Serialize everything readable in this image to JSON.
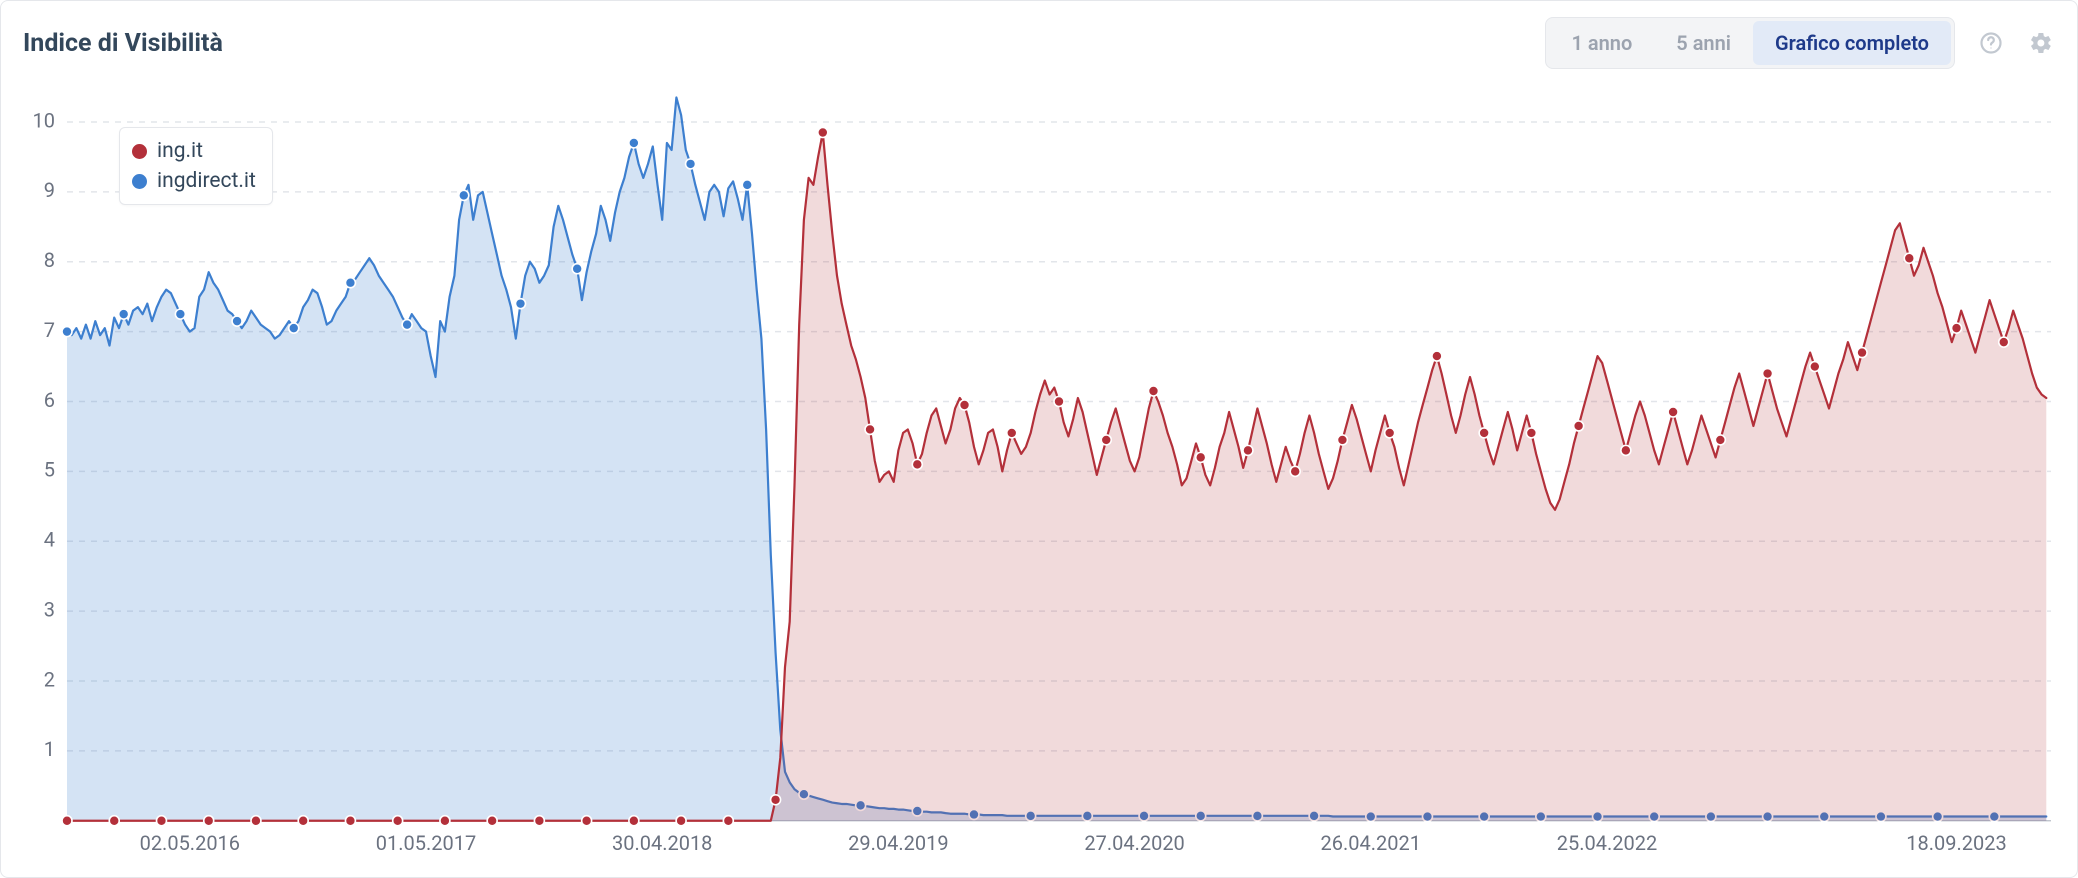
{
  "header": {
    "title": "Indice di Visibilità",
    "range_buttons": {
      "y1": "1 anno",
      "y5": "5 anni",
      "full": "Grafico completo",
      "active": "full"
    }
  },
  "legend": {
    "items": [
      {
        "label": "ing.it",
        "color": "#b3303a"
      },
      {
        "label": "ingdirect.it",
        "color": "#3d7fcf"
      }
    ]
  },
  "chart": {
    "background_color": "#ffffff",
    "grid_color": "#e2e5ea",
    "axis_color": "#b8bec7",
    "label_color": "#6b7280",
    "label_fontsize": 20,
    "ylim": [
      0,
      10.5
    ],
    "yticks": [
      1,
      2,
      3,
      4,
      5,
      6,
      7,
      8,
      9,
      10
    ],
    "x_index_range": [
      0,
      420
    ],
    "xticks": [
      {
        "i": 26,
        "label": "02.05.2016"
      },
      {
        "i": 76,
        "label": "01.05.2017"
      },
      {
        "i": 126,
        "label": "30.04.2018"
      },
      {
        "i": 176,
        "label": "29.04.2019"
      },
      {
        "i": 226,
        "label": "27.04.2020"
      },
      {
        "i": 276,
        "label": "26.04.2021"
      },
      {
        "i": 326,
        "label": "25.04.2022"
      },
      {
        "i": 400,
        "label": "18.09.2023"
      }
    ],
    "series": {
      "ingdirect": {
        "color": "#3d7fcf",
        "fill_color": "#3d7fcf",
        "fill_opacity": 0.22,
        "marker_radius": 5,
        "line_width": 2.2,
        "marker_every": 12,
        "data": [
          7.0,
          6.95,
          7.05,
          6.9,
          7.1,
          6.9,
          7.15,
          6.95,
          7.05,
          6.8,
          7.2,
          7.05,
          7.25,
          7.1,
          7.3,
          7.35,
          7.25,
          7.4,
          7.15,
          7.35,
          7.5,
          7.6,
          7.55,
          7.4,
          7.25,
          7.1,
          7.0,
          7.05,
          7.5,
          7.6,
          7.85,
          7.7,
          7.6,
          7.45,
          7.3,
          7.25,
          7.15,
          7.05,
          7.15,
          7.3,
          7.2,
          7.1,
          7.05,
          7.0,
          6.9,
          6.95,
          7.05,
          7.15,
          7.05,
          7.15,
          7.35,
          7.45,
          7.6,
          7.55,
          7.35,
          7.1,
          7.15,
          7.3,
          7.4,
          7.5,
          7.7,
          7.75,
          7.85,
          7.95,
          8.05,
          7.95,
          7.8,
          7.7,
          7.6,
          7.5,
          7.35,
          7.2,
          7.1,
          7.25,
          7.15,
          7.05,
          7.0,
          6.65,
          6.35,
          7.15,
          7.0,
          7.5,
          7.8,
          8.6,
          8.95,
          9.1,
          8.6,
          8.95,
          9.0,
          8.7,
          8.4,
          8.1,
          7.8,
          7.6,
          7.35,
          6.9,
          7.4,
          7.8,
          8.0,
          7.9,
          7.7,
          7.8,
          7.95,
          8.5,
          8.8,
          8.6,
          8.35,
          8.1,
          7.9,
          7.45,
          7.85,
          8.15,
          8.4,
          8.8,
          8.6,
          8.3,
          8.7,
          9.0,
          9.2,
          9.5,
          9.7,
          9.4,
          9.2,
          9.4,
          9.65,
          9.1,
          8.6,
          9.7,
          9.6,
          10.35,
          10.1,
          9.6,
          9.4,
          9.1,
          8.85,
          8.6,
          9.0,
          9.1,
          9.0,
          8.65,
          9.05,
          9.15,
          8.9,
          8.6,
          9.1,
          8.4,
          7.6,
          6.9,
          5.6,
          3.8,
          2.4,
          1.3,
          0.7,
          0.55,
          0.45,
          0.4,
          0.38,
          0.36,
          0.34,
          0.32,
          0.3,
          0.28,
          0.26,
          0.25,
          0.24,
          0.24,
          0.23,
          0.22,
          0.22,
          0.21,
          0.2,
          0.19,
          0.18,
          0.18,
          0.17,
          0.17,
          0.16,
          0.16,
          0.15,
          0.14,
          0.14,
          0.13,
          0.13,
          0.12,
          0.12,
          0.12,
          0.11,
          0.1,
          0.1,
          0.1,
          0.1,
          0.09,
          0.09,
          0.09,
          0.08,
          0.08,
          0.08,
          0.08,
          0.08,
          0.07,
          0.07,
          0.07,
          0.07,
          0.07,
          0.07,
          0.07,
          0.07,
          0.07,
          0.07,
          0.07,
          0.07,
          0.07,
          0.07,
          0.07,
          0.07,
          0.07,
          0.07,
          0.07,
          0.07,
          0.07,
          0.07,
          0.07,
          0.07,
          0.07,
          0.07,
          0.07,
          0.07,
          0.07,
          0.07,
          0.07,
          0.07,
          0.07,
          0.07,
          0.07,
          0.07,
          0.07,
          0.07,
          0.07,
          0.07,
          0.07,
          0.07,
          0.07,
          0.07,
          0.07,
          0.07,
          0.07,
          0.07,
          0.07,
          0.07,
          0.07,
          0.07,
          0.07,
          0.07,
          0.07,
          0.07,
          0.07,
          0.07,
          0.07,
          0.07,
          0.07,
          0.07,
          0.07,
          0.07,
          0.07,
          0.07,
          0.07,
          0.07,
          0.07,
          0.06,
          0.06,
          0.06,
          0.06,
          0.06,
          0.06,
          0.06,
          0.06,
          0.06,
          0.06,
          0.06,
          0.06,
          0.06,
          0.06,
          0.06,
          0.06,
          0.06,
          0.06,
          0.06,
          0.06,
          0.06,
          0.06,
          0.06,
          0.06,
          0.06,
          0.06,
          0.06,
          0.06,
          0.06,
          0.06,
          0.06,
          0.06,
          0.06,
          0.06,
          0.06,
          0.06,
          0.06,
          0.06,
          0.06,
          0.06,
          0.06,
          0.06,
          0.06,
          0.06,
          0.06,
          0.06,
          0.06,
          0.06,
          0.06,
          0.06,
          0.06,
          0.06,
          0.06,
          0.06,
          0.06,
          0.06,
          0.06,
          0.06,
          0.06,
          0.06,
          0.06,
          0.06,
          0.06,
          0.06,
          0.06,
          0.06,
          0.06,
          0.06,
          0.06,
          0.06,
          0.06,
          0.06,
          0.06,
          0.06,
          0.06,
          0.06,
          0.06,
          0.06,
          0.06,
          0.06,
          0.06,
          0.06,
          0.06,
          0.06,
          0.06,
          0.06,
          0.06,
          0.06,
          0.06,
          0.06,
          0.06,
          0.06,
          0.06,
          0.06,
          0.06,
          0.06,
          0.06,
          0.06,
          0.06,
          0.06,
          0.06,
          0.06,
          0.06,
          0.06,
          0.06,
          0.06,
          0.06,
          0.06,
          0.06,
          0.06,
          0.06,
          0.06,
          0.06,
          0.06,
          0.06,
          0.06,
          0.06,
          0.06,
          0.06,
          0.06,
          0.06,
          0.06,
          0.06,
          0.06,
          0.06,
          0.06,
          0.06,
          0.06,
          0.06,
          0.06,
          0.06,
          0.06,
          0.06,
          0.06,
          0.06,
          0.06,
          0.06,
          0.06,
          0.06,
          0.06,
          0.06,
          0.06,
          0.06,
          0.06,
          0.06,
          0.06,
          0.06,
          0.06,
          0.06,
          0.06,
          0.06,
          0.06
        ]
      },
      "ing": {
        "color": "#b3303a",
        "fill_color": "#b3303a",
        "fill_opacity": 0.18,
        "marker_radius": 5,
        "line_width": 2.2,
        "marker_every": 10,
        "data": [
          0.0,
          0.0,
          0.0,
          0.0,
          0.0,
          0.0,
          0.0,
          0.0,
          0.0,
          0.0,
          0.0,
          0.0,
          0.0,
          0.0,
          0.0,
          0.0,
          0.0,
          0.0,
          0.0,
          0.0,
          0.0,
          0.0,
          0.0,
          0.0,
          0.0,
          0.0,
          0.0,
          0.0,
          0.0,
          0.0,
          0.0,
          0.0,
          0.0,
          0.0,
          0.0,
          0.0,
          0.0,
          0.0,
          0.0,
          0.0,
          0.0,
          0.0,
          0.0,
          0.0,
          0.0,
          0.0,
          0.0,
          0.0,
          0.0,
          0.0,
          0.0,
          0.0,
          0.0,
          0.0,
          0.0,
          0.0,
          0.0,
          0.0,
          0.0,
          0.0,
          0.0,
          0.0,
          0.0,
          0.0,
          0.0,
          0.0,
          0.0,
          0.0,
          0.0,
          0.0,
          0.0,
          0.0,
          0.0,
          0.0,
          0.0,
          0.0,
          0.0,
          0.0,
          0.0,
          0.0,
          0.0,
          0.0,
          0.0,
          0.0,
          0.0,
          0.0,
          0.0,
          0.0,
          0.0,
          0.0,
          0.0,
          0.0,
          0.0,
          0.0,
          0.0,
          0.0,
          0.0,
          0.0,
          0.0,
          0.0,
          0.0,
          0.0,
          0.0,
          0.0,
          0.0,
          0.0,
          0.0,
          0.0,
          0.0,
          0.0,
          0.0,
          0.0,
          0.0,
          0.0,
          0.0,
          0.0,
          0.0,
          0.0,
          0.0,
          0.0,
          0.0,
          0.0,
          0.0,
          0.0,
          0.0,
          0.0,
          0.0,
          0.0,
          0.0,
          0.0,
          0.0,
          0.0,
          0.0,
          0.0,
          0.0,
          0.0,
          0.0,
          0.0,
          0.0,
          0.0,
          0.0,
          0.0,
          0.0,
          0.0,
          0.0,
          0.0,
          0.0,
          0.0,
          0.0,
          0.0,
          0.3,
          0.9,
          2.2,
          2.85,
          4.8,
          7.1,
          8.6,
          9.2,
          9.1,
          9.5,
          9.85,
          9.1,
          8.4,
          7.8,
          7.4,
          7.1,
          6.8,
          6.6,
          6.35,
          6.05,
          5.6,
          5.15,
          4.85,
          4.95,
          5.0,
          4.85,
          5.3,
          5.55,
          5.6,
          5.4,
          5.1,
          5.25,
          5.55,
          5.8,
          5.9,
          5.65,
          5.4,
          5.6,
          5.9,
          6.05,
          5.95,
          5.7,
          5.35,
          5.1,
          5.3,
          5.55,
          5.6,
          5.35,
          5.0,
          5.3,
          5.55,
          5.4,
          5.25,
          5.35,
          5.55,
          5.85,
          6.1,
          6.3,
          6.1,
          6.2,
          6.0,
          5.7,
          5.5,
          5.75,
          6.05,
          5.85,
          5.55,
          5.25,
          4.95,
          5.2,
          5.45,
          5.7,
          5.9,
          5.65,
          5.4,
          5.15,
          5.0,
          5.2,
          5.55,
          5.9,
          6.15,
          6.0,
          5.8,
          5.55,
          5.35,
          5.1,
          4.8,
          4.9,
          5.15,
          5.4,
          5.2,
          4.95,
          4.8,
          5.05,
          5.35,
          5.55,
          5.85,
          5.6,
          5.35,
          5.05,
          5.3,
          5.6,
          5.9,
          5.65,
          5.4,
          5.1,
          4.85,
          5.1,
          5.35,
          5.15,
          5.0,
          5.25,
          5.55,
          5.8,
          5.55,
          5.25,
          5.0,
          4.75,
          4.9,
          5.15,
          5.45,
          5.7,
          5.95,
          5.75,
          5.5,
          5.25,
          5.0,
          5.3,
          5.55,
          5.8,
          5.55,
          5.35,
          5.05,
          4.8,
          5.1,
          5.4,
          5.7,
          5.95,
          6.2,
          6.45,
          6.65,
          6.4,
          6.1,
          5.8,
          5.55,
          5.8,
          6.1,
          6.35,
          6.1,
          5.8,
          5.55,
          5.3,
          5.1,
          5.35,
          5.6,
          5.85,
          5.6,
          5.3,
          5.55,
          5.8,
          5.55,
          5.25,
          5.0,
          4.75,
          4.55,
          4.45,
          4.6,
          4.85,
          5.1,
          5.4,
          5.65,
          5.9,
          6.15,
          6.4,
          6.65,
          6.55,
          6.3,
          6.05,
          5.8,
          5.55,
          5.3,
          5.55,
          5.8,
          6.0,
          5.8,
          5.55,
          5.3,
          5.1,
          5.35,
          5.6,
          5.85,
          5.6,
          5.35,
          5.1,
          5.3,
          5.55,
          5.8,
          5.6,
          5.4,
          5.2,
          5.45,
          5.7,
          5.95,
          6.2,
          6.4,
          6.15,
          5.9,
          5.65,
          5.9,
          6.15,
          6.4,
          6.15,
          5.9,
          5.7,
          5.5,
          5.75,
          6.0,
          6.25,
          6.5,
          6.7,
          6.5,
          6.3,
          6.1,
          5.9,
          6.15,
          6.4,
          6.6,
          6.85,
          6.65,
          6.45,
          6.7,
          6.95,
          7.2,
          7.45,
          7.7,
          7.95,
          8.2,
          8.45,
          8.55,
          8.3,
          8.05,
          7.8,
          7.95,
          8.2,
          8.0,
          7.8,
          7.55,
          7.35,
          7.1,
          6.85,
          7.05,
          7.3,
          7.1,
          6.9,
          6.7,
          6.95,
          7.2,
          7.45,
          7.25,
          7.05,
          6.85,
          7.05,
          7.3,
          7.1,
          6.9,
          6.65,
          6.4,
          6.2,
          6.1,
          6.05
        ]
      }
    }
  }
}
